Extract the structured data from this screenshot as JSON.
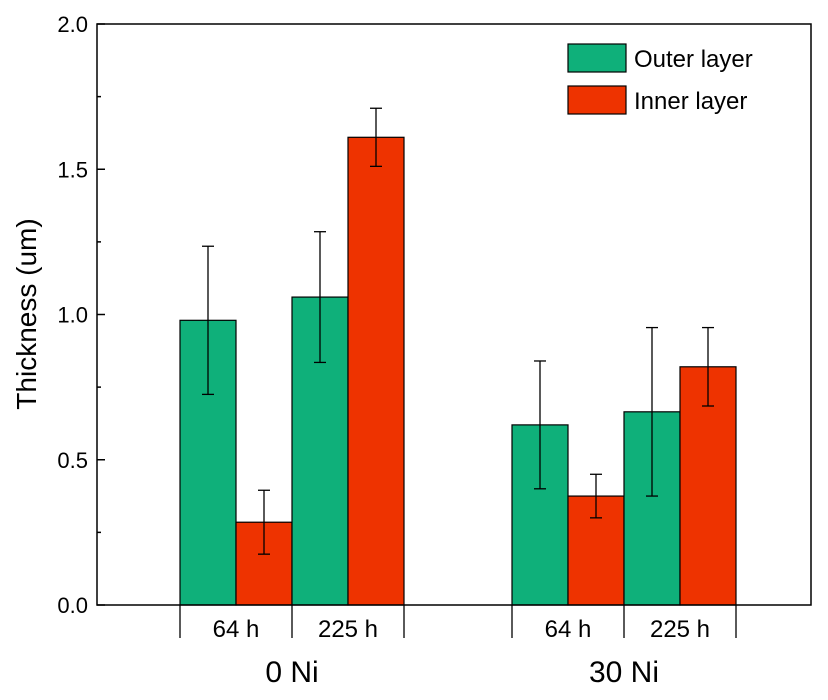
{
  "chart_data": {
    "type": "bar",
    "ylabel": "Thickness (um)",
    "ylim": [
      0,
      2.0
    ],
    "yticks": [
      "0.0",
      "0.5",
      "1.0",
      "1.5",
      "2.0"
    ],
    "grid": false,
    "legend_position": "top-right",
    "groups": [
      {
        "label": "0 Ni",
        "subgroups": [
          {
            "label": "64 h",
            "values": [
              {
                "series": "Outer layer",
                "value": 0.98,
                "error": 0.255
              },
              {
                "series": "Inner layer",
                "value": 0.285,
                "error": 0.11
              }
            ]
          },
          {
            "label": "225 h",
            "values": [
              {
                "series": "Outer layer",
                "value": 1.06,
                "error": 0.225
              },
              {
                "series": "Inner layer",
                "value": 1.61,
                "error": 0.1
              }
            ]
          }
        ]
      },
      {
        "label": "30 Ni",
        "subgroups": [
          {
            "label": "64 h",
            "values": [
              {
                "series": "Outer layer",
                "value": 0.62,
                "error": 0.22
              },
              {
                "series": "Inner layer",
                "value": 0.375,
                "error": 0.075
              }
            ]
          },
          {
            "label": "225 h",
            "values": [
              {
                "series": "Outer layer",
                "value": 0.665,
                "error": 0.29
              },
              {
                "series": "Inner layer",
                "value": 0.82,
                "error": 0.135
              }
            ]
          }
        ]
      }
    ],
    "series": [
      {
        "name": "Outer layer",
        "color": "#0fb07a"
      },
      {
        "name": "Inner layer",
        "color": "#ee3300"
      }
    ]
  }
}
